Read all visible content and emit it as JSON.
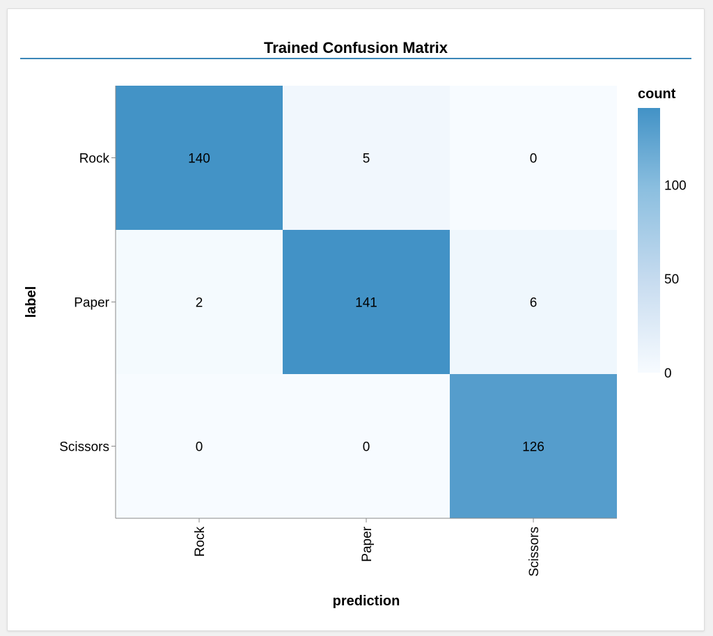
{
  "title": "Trained Confusion Matrix",
  "chart_data": {
    "type": "heatmap",
    "title": "Trained Confusion Matrix",
    "xlabel": "prediction",
    "ylabel": "label",
    "x_categories": [
      "Rock",
      "Paper",
      "Scissors"
    ],
    "y_categories": [
      "Rock",
      "Paper",
      "Scissors"
    ],
    "values": [
      [
        140,
        5,
        0
      ],
      [
        2,
        141,
        6
      ],
      [
        0,
        0,
        126
      ]
    ],
    "legend": {
      "title": "count",
      "ticks": [
        100,
        50,
        0
      ],
      "domain": [
        0,
        141
      ],
      "placement": "right"
    },
    "colors": {
      "low": "#f7fbff",
      "high": "#4292c6",
      "rule": "#3a86b8"
    }
  }
}
